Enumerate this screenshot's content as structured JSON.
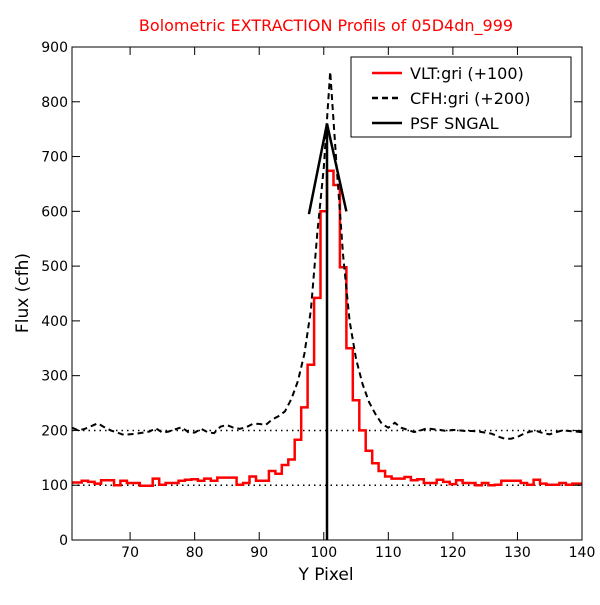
{
  "chart_data": {
    "type": "line",
    "title": "Bolometric EXTRACTION Profils of 05D4dn_999",
    "xlabel": "Y Pixel",
    "ylabel": "Flux (cfh)",
    "xlim": [
      61,
      140
    ],
    "ylim": [
      0,
      900
    ],
    "x_ticks": [
      70,
      80,
      90,
      100,
      110,
      120,
      130,
      140
    ],
    "y_ticks": [
      0,
      100,
      200,
      300,
      400,
      500,
      600,
      700,
      800,
      900
    ],
    "grid": false,
    "legend_position": "top-right",
    "series": [
      {
        "name": "VLT:gri (+100)",
        "style": "steps",
        "color": "#ff0000",
        "x": [
          61,
          62,
          63,
          64,
          65,
          66,
          67,
          68,
          69,
          70,
          71,
          72,
          73,
          74,
          75,
          76,
          77,
          78,
          79,
          80,
          81,
          82,
          83,
          84,
          85,
          86,
          87,
          88,
          89,
          90,
          91,
          92,
          93,
          94,
          95,
          96,
          97,
          98,
          99,
          100,
          101,
          102,
          103,
          104,
          105,
          106,
          107,
          108,
          109,
          110,
          111,
          112,
          113,
          114,
          115,
          116,
          117,
          118,
          119,
          120,
          121,
          122,
          123,
          124,
          125,
          126,
          127,
          128,
          129,
          130,
          131,
          132,
          133,
          134,
          135,
          136,
          137,
          138,
          139,
          140
        ],
        "y": [
          105,
          105,
          108,
          106,
          103,
          109,
          109,
          100,
          108,
          104,
          104,
          99,
          99,
          112,
          101,
          104,
          104,
          108,
          110,
          111,
          108,
          112,
          108,
          114,
          114,
          114,
          101,
          104,
          116,
          108,
          108,
          126,
          121,
          137,
          147,
          183,
          242,
          320,
          442,
          600,
          674,
          648,
          498,
          350,
          255,
          200,
          163,
          140,
          126,
          116,
          112,
          112,
          115,
          109,
          111,
          104,
          104,
          110,
          106,
          102,
          109,
          104,
          104,
          100,
          104,
          100,
          101,
          108,
          108,
          108,
          104,
          101,
          110,
          103,
          101,
          101,
          104,
          101,
          103,
          103
        ]
      },
      {
        "name": "CFH:gri (+200)",
        "style": "dashed",
        "color": "#000000",
        "x": [
          61,
          62,
          63,
          64,
          65,
          66,
          67,
          68,
          69,
          70,
          71,
          72,
          73,
          74,
          75,
          76,
          77,
          78,
          79,
          80,
          81,
          82,
          83,
          84,
          85,
          86,
          87,
          88,
          89,
          90,
          91,
          92,
          93,
          94,
          95,
          96,
          97,
          98,
          99,
          100,
          101,
          102,
          103,
          104,
          105,
          106,
          107,
          108,
          109,
          110,
          111,
          112,
          113,
          114,
          115,
          116,
          117,
          118,
          119,
          120,
          121,
          122,
          123,
          124,
          125,
          126,
          127,
          128,
          129,
          130,
          131,
          132,
          133,
          134,
          135,
          136,
          137,
          138,
          139,
          140
        ],
        "y": [
          205,
          200,
          203,
          208,
          213,
          206,
          200,
          196,
          192,
          193,
          194,
          196,
          198,
          204,
          196,
          198,
          202,
          206,
          197,
          196,
          203,
          197,
          195,
          207,
          210,
          205,
          203,
          206,
          212,
          212,
          210,
          220,
          226,
          235,
          258,
          290,
          340,
          420,
          560,
          680,
          855,
          680,
          520,
          400,
          330,
          285,
          252,
          230,
          212,
          205,
          214,
          205,
          201,
          197,
          200,
          204,
          202,
          201,
          199,
          201,
          200,
          199,
          199,
          198,
          196,
          194,
          189,
          185,
          185,
          188,
          194,
          198,
          199,
          195,
          193,
          197,
          200,
          199,
          198,
          197
        ]
      },
      {
        "name": "PSF SNGAL",
        "style": "solid",
        "color": "#000000",
        "x": [
          100.5,
          100.5
        ],
        "y": [
          0,
          760
        ]
      }
    ],
    "reference_lines": [
      {
        "y": 100,
        "style": "dotted",
        "color": "#000000"
      },
      {
        "y": 200,
        "style": "dotted",
        "color": "#000000"
      }
    ],
    "annotations": [
      {
        "type": "arrowhead",
        "tip": [
          100.5,
          760
        ],
        "left_end": [
          97.7,
          595
        ],
        "right_end": [
          103.5,
          600
        ],
        "color": "#000000"
      }
    ]
  }
}
